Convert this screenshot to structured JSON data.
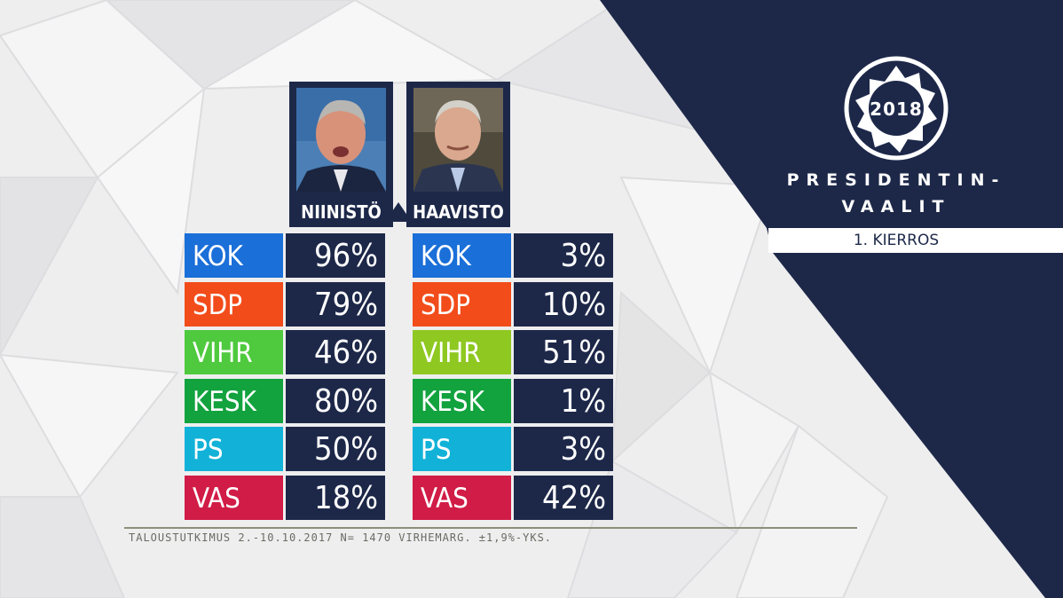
{
  "brand": {
    "year": "2018",
    "title_line1": "PRESIDENTIN-",
    "title_line2": "VAALIT",
    "round": "1. KIERROS",
    "navy": "#1d2849"
  },
  "candidates": [
    {
      "name": "NIINISTÖ",
      "icon": "portrait-niinisto"
    },
    {
      "name": "HAAVISTO",
      "icon": "portrait-haavisto"
    }
  ],
  "results": {
    "niinisto": [
      {
        "party": "KOK",
        "value": "96%",
        "color": "#1a6fd8"
      },
      {
        "party": "SDP",
        "value": "79%",
        "color": "#f24c1a"
      },
      {
        "party": "VIHR",
        "value": "46%",
        "color": "#4fc93e"
      },
      {
        "party": "KESK",
        "value": "80%",
        "color": "#12a23e"
      },
      {
        "party": "PS",
        "value": "50%",
        "color": "#12b2d8"
      },
      {
        "party": "VAS",
        "value": "18%",
        "color": "#d01c46"
      }
    ],
    "haavisto": [
      {
        "party": "KOK",
        "value": "3%",
        "color": "#1a6fd8"
      },
      {
        "party": "SDP",
        "value": "10%",
        "color": "#f24c1a"
      },
      {
        "party": "VIHR",
        "value": "51%",
        "color": "#8ec821"
      },
      {
        "party": "KESK",
        "value": "1%",
        "color": "#12a23e"
      },
      {
        "party": "PS",
        "value": "3%",
        "color": "#12b2d8"
      },
      {
        "party": "VAS",
        "value": "42%",
        "color": "#d01c46"
      }
    ]
  },
  "source": "TALOUSTUTKIMUS 2.-10.10.2017 N= 1470 VIRHEMARG. ±1,9%-YKS."
}
